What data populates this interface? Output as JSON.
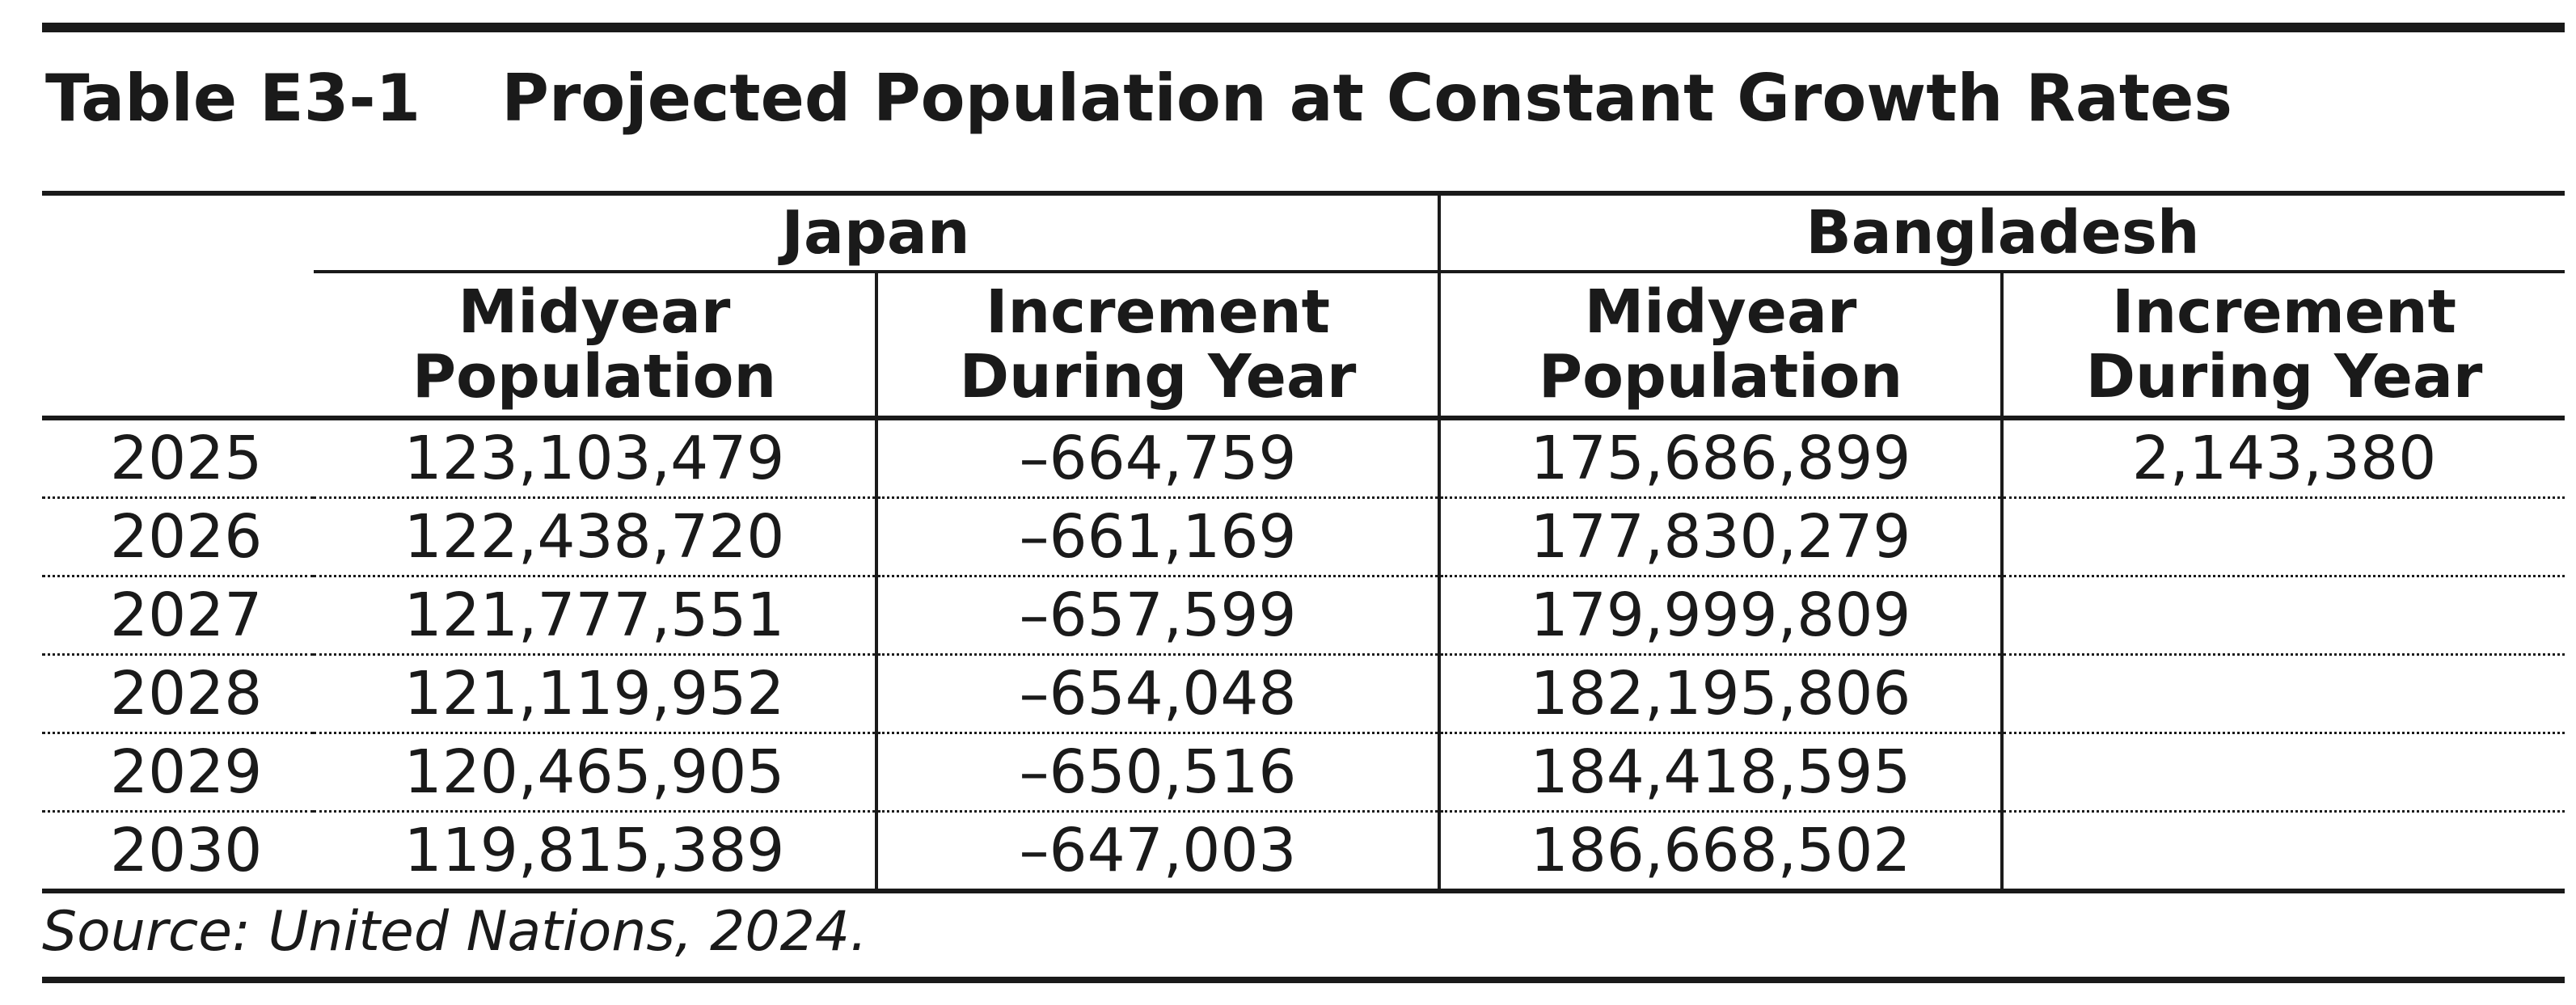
{
  "table_label": "Table E3-1",
  "table_title": "Projected Population at Constant Growth Rates",
  "countries": [
    "Japan",
    "Bangladesh"
  ],
  "column_headers": [
    {
      "line1": "Midyear",
      "line2": "Population"
    },
    {
      "line1": "Increment",
      "line2": "During Year"
    },
    {
      "line1": "Midyear",
      "line2": "Population"
    },
    {
      "line1": "Increment",
      "line2": "During Year"
    }
  ],
  "rows": [
    {
      "year": "2025",
      "cells": [
        "123,103,479",
        "–664,759",
        "175,686,899",
        "2,143,380"
      ]
    },
    {
      "year": "2026",
      "cells": [
        "122,438,720",
        "–661,169",
        "177,830,279",
        ""
      ]
    },
    {
      "year": "2027",
      "cells": [
        "121,777,551",
        "–657,599",
        "179,999,809",
        ""
      ]
    },
    {
      "year": "2028",
      "cells": [
        "121,119,952",
        "–654,048",
        "182,195,806",
        ""
      ]
    },
    {
      "year": "2029",
      "cells": [
        "120,465,905",
        "–650,516",
        "184,418,595",
        ""
      ]
    },
    {
      "year": "2030",
      "cells": [
        "119,815,389",
        "–647,003",
        "186,668,502",
        ""
      ]
    }
  ],
  "source": "Source: United Nations, 2024."
}
